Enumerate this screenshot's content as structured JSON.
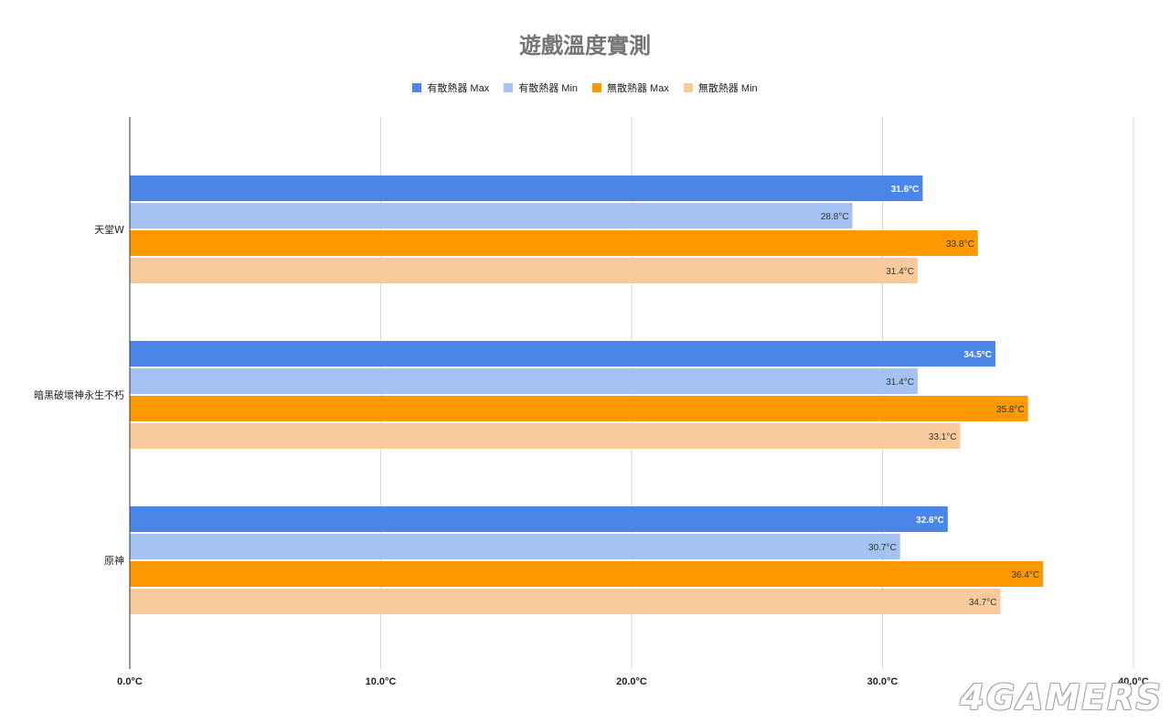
{
  "chart_data": {
    "type": "bar",
    "orientation": "horizontal",
    "title": "遊戲溫度實測",
    "categories": [
      "天堂W",
      "暗黑破壞神永生不朽",
      "原神"
    ],
    "series": [
      {
        "name": "有散熱器 Max",
        "color": "#4a86e8",
        "values": [
          31.6,
          34.5,
          32.6
        ],
        "labels": [
          "31.6°C",
          "34.5°C",
          "32.6°C"
        ],
        "label_color": "#ffffff",
        "label_bold": true
      },
      {
        "name": "有散熱器 Min",
        "color": "#a4c2f4",
        "values": [
          28.8,
          31.4,
          30.7
        ],
        "labels": [
          "28.8°C",
          "31.4°C",
          "30.7°C"
        ],
        "label_color": "#333333",
        "label_bold": false
      },
      {
        "name": "無散熱器 Max",
        "color": "#ff9900",
        "values": [
          33.8,
          35.8,
          36.4
        ],
        "labels": [
          "33.8°C",
          "35.8°C",
          "36.4°C"
        ],
        "label_color": "#333333",
        "label_bold": false
      },
      {
        "name": "無散熱器 Min",
        "color": "#f9cb9c",
        "values": [
          31.4,
          33.1,
          34.7
        ],
        "labels": [
          "31.4°C",
          "33.1°C",
          "34.7°C"
        ],
        "label_color": "#333333",
        "label_bold": false
      }
    ],
    "xlim": [
      0,
      40
    ],
    "xticks": [
      0,
      10,
      20,
      30,
      40
    ],
    "xtick_labels": [
      "0.0°C",
      "10.0°C",
      "20.0°C",
      "30.0°C",
      "40.0°C"
    ],
    "xlabel": "",
    "ylabel": "",
    "grid": true,
    "legend_position": "top"
  },
  "watermark": "4GAMERS"
}
